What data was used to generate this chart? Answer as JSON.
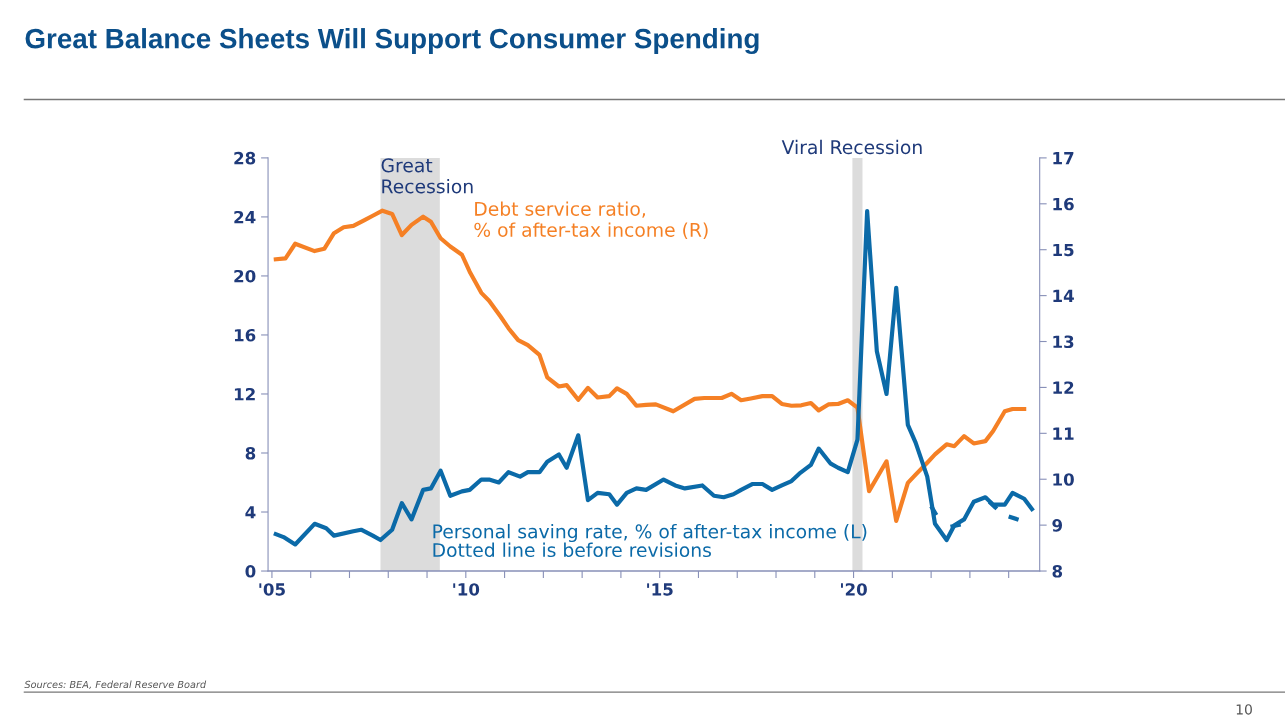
{
  "chart_data": {
    "type": "line",
    "title": "Great Balance Sheets Will Support Consumer Spending",
    "xlim": [
      2004.9,
      2024.8
    ],
    "xticks": [
      {
        "value": 2005,
        "label": "'05"
      },
      {
        "value": 2006,
        "label": null
      },
      {
        "value": 2007,
        "label": null
      },
      {
        "value": 2008,
        "label": null
      },
      {
        "value": 2009,
        "label": null
      },
      {
        "value": 2010,
        "label": "'10"
      },
      {
        "value": 2011,
        "label": null
      },
      {
        "value": 2012,
        "label": null
      },
      {
        "value": 2013,
        "label": null
      },
      {
        "value": 2014,
        "label": null
      },
      {
        "value": 2015,
        "label": "'15"
      },
      {
        "value": 2016,
        "label": null
      },
      {
        "value": 2017,
        "label": null
      },
      {
        "value": 2018,
        "label": null
      },
      {
        "value": 2019,
        "label": null
      },
      {
        "value": 2020,
        "label": "'20"
      },
      {
        "value": 2021,
        "label": null
      },
      {
        "value": 2022,
        "label": null
      },
      {
        "value": 2023,
        "label": null
      },
      {
        "value": 2024,
        "label": null
      }
    ],
    "ylim": [
      0,
      28
    ],
    "yticks": [
      0,
      4,
      8,
      12,
      16,
      20,
      24,
      28
    ],
    "y2lim": [
      8,
      17
    ],
    "y2ticks": [
      8,
      9,
      10,
      11,
      12,
      13,
      14,
      15,
      16,
      17
    ],
    "grid": false,
    "legend": false,
    "series": [
      {
        "name": "Personal saving rate, % of after-tax income (L)",
        "color": "#0b6aa8",
        "axis": "y",
        "line_style": "solid",
        "x": [
          2005.1,
          2005.3,
          2005.6,
          2006.1,
          2006.4,
          2006.6,
          2007.1,
          2007.3,
          2007.6,
          2007.8,
          2008.1,
          2008.35,
          2008.6,
          2008.9,
          2009.1,
          2009.35,
          2009.6,
          2009.9,
          2010.1,
          2010.4,
          2010.6,
          2010.85,
          2011.1,
          2011.4,
          2011.6,
          2011.9,
          2012.1,
          2012.4,
          2012.6,
          2012.9,
          2013.15,
          2013.4,
          2013.7,
          2013.9,
          2014.15,
          2014.4,
          2014.65,
          2015.1,
          2015.4,
          2015.65,
          2016.1,
          2016.4,
          2016.65,
          2016.9,
          2017.1,
          2017.4,
          2017.65,
          2017.9,
          2018.15,
          2018.4,
          2018.6,
          2018.9,
          2019.1,
          2019.4,
          2019.6,
          2019.85,
          2020.1,
          2020.35,
          2020.6,
          2020.85,
          2021.1,
          2021.4,
          2021.6,
          2021.9,
          2022.1,
          2022.4,
          2022.6,
          2022.85,
          2023.1,
          2023.4,
          2023.6,
          2023.9,
          2024.1,
          2024.4,
          2024.6
        ],
        "values": [
          2.5,
          2.3,
          1.8,
          3.2,
          2.9,
          2.4,
          2.7,
          2.8,
          2.4,
          2.1,
          2.8,
          4.6,
          3.5,
          5.5,
          5.6,
          6.8,
          5.1,
          5.4,
          5.5,
          6.2,
          6.2,
          6.0,
          6.7,
          6.4,
          6.7,
          6.7,
          7.4,
          7.9,
          7.0,
          9.2,
          4.8,
          5.3,
          5.2,
          4.5,
          5.3,
          5.6,
          5.5,
          6.2,
          5.8,
          5.6,
          5.8,
          5.1,
          5.0,
          5.2,
          5.5,
          5.9,
          5.9,
          5.5,
          5.8,
          6.1,
          6.6,
          7.2,
          8.3,
          7.3,
          7.0,
          6.7,
          8.9,
          24.4,
          14.9,
          12.0,
          19.2,
          9.9,
          8.7,
          6.4,
          3.2,
          2.1,
          3.1,
          3.5,
          4.7,
          5.0,
          4.5,
          4.5,
          5.3,
          4.9,
          4.2
        ]
      },
      {
        "color": "#0b6aa8",
        "axis": "y",
        "line_style": "dashed",
        "x": [
          2022.0,
          2022.2,
          2022.3,
          2022.5,
          2022.85,
          2023.0,
          2023.5,
          2023.7,
          2023.8,
          2024.0,
          2024.35
        ],
        "values": [
          4.4,
          3.5,
          null,
          3.0,
          3.2,
          null,
          4.7,
          4.2,
          null,
          3.7,
          3.4
        ]
      },
      {
        "name": "Debt service ratio,\n% of after-tax income (R)",
        "color": "#f58025",
        "axis": "y2",
        "line_style": "solid",
        "x": [
          2005.1,
          2005.35,
          2005.6,
          2006.1,
          2006.35,
          2006.6,
          2006.85,
          2007.1,
          2007.4,
          2007.6,
          2007.85,
          2008.1,
          2008.35,
          2008.6,
          2008.9,
          2009.1,
          2009.35,
          2009.6,
          2009.9,
          2010.1,
          2010.4,
          2010.6,
          2010.9,
          2011.1,
          2011.35,
          2011.6,
          2011.9,
          2012.1,
          2012.4,
          2012.6,
          2012.9,
          2013.15,
          2013.4,
          2013.7,
          2013.9,
          2014.15,
          2014.4,
          2014.65,
          2014.9,
          2015.35,
          2015.9,
          2016.15,
          2016.6,
          2016.85,
          2017.1,
          2017.35,
          2017.65,
          2017.9,
          2018.15,
          2018.4,
          2018.65,
          2018.9,
          2019.1,
          2019.35,
          2019.6,
          2019.85,
          2020.1,
          2020.4,
          2020.85,
          2021.1,
          2021.4,
          2021.6,
          2021.9,
          2022.1,
          2022.4,
          2022.6,
          2022.85,
          2023.1,
          2023.4,
          2023.6,
          2023.9,
          2024.1,
          2024.4
        ],
        "values": [
          14.79,
          14.81,
          15.13,
          14.97,
          15.02,
          15.36,
          15.49,
          15.52,
          15.65,
          15.74,
          15.85,
          15.78,
          15.32,
          15.54,
          15.72,
          15.61,
          15.25,
          15.07,
          14.89,
          14.52,
          14.06,
          13.89,
          13.54,
          13.29,
          13.03,
          12.92,
          12.71,
          12.22,
          12.02,
          12.05,
          11.73,
          11.99,
          11.78,
          11.81,
          11.98,
          11.86,
          11.6,
          11.62,
          11.63,
          11.48,
          11.75,
          11.77,
          11.77,
          11.86,
          11.72,
          11.76,
          11.81,
          11.81,
          11.64,
          11.6,
          11.61,
          11.66,
          11.5,
          11.63,
          11.64,
          11.72,
          11.56,
          9.74,
          10.39,
          9.09,
          9.92,
          10.1,
          10.36,
          10.54,
          10.76,
          10.72,
          10.94,
          10.78,
          10.83,
          11.05,
          11.48,
          11.53,
          11.53
        ]
      }
    ],
    "bands": [
      {
        "axis": "x",
        "from": 2007.8,
        "to": 2009.33,
        "label": "Great\nRecession",
        "color": "#dcdcdc"
      },
      {
        "axis": "x",
        "from": 2019.97,
        "to": 2020.23,
        "label": "Viral Recession",
        "color": "#dcdcdc"
      }
    ],
    "annotations": [
      "Dotted line is before revisions",
      "Sources: BEA, Federal Reserve Board",
      "10"
    ]
  }
}
